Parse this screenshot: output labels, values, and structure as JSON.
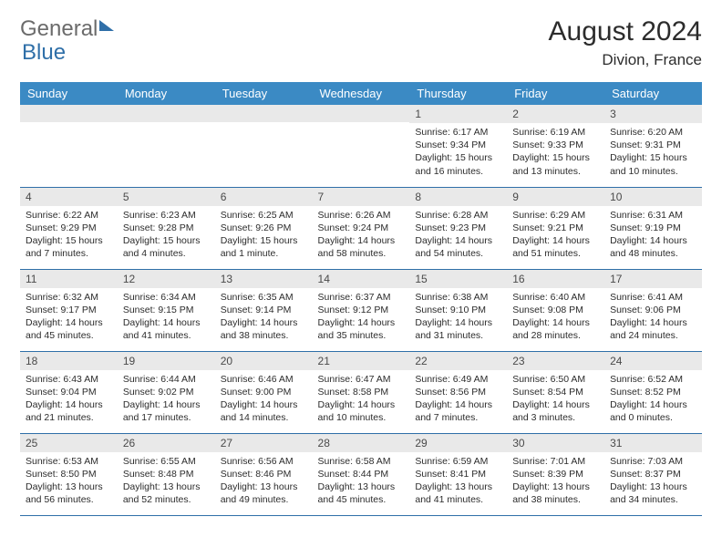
{
  "brand": {
    "part1": "General",
    "part2": "Blue"
  },
  "title": "August 2024",
  "location": "Divion, France",
  "colors": {
    "header_bg": "#3b8ac4",
    "header_text": "#ffffff",
    "daynum_bg": "#e9e9e9",
    "border": "#2f6fa8",
    "text": "#2c2c2c",
    "logo_gray": "#6b6b6b",
    "logo_blue": "#2f6fa8"
  },
  "font": {
    "family": "Arial",
    "title_size_pt": 30,
    "header_size_pt": 13,
    "cell_size_pt": 10.5
  },
  "daysOfWeek": [
    "Sunday",
    "Monday",
    "Tuesday",
    "Wednesday",
    "Thursday",
    "Friday",
    "Saturday"
  ],
  "weeks": [
    [
      null,
      null,
      null,
      null,
      {
        "n": "1",
        "sr": "6:17 AM",
        "ss": "9:34 PM",
        "dl": "15 hours and 16 minutes."
      },
      {
        "n": "2",
        "sr": "6:19 AM",
        "ss": "9:33 PM",
        "dl": "15 hours and 13 minutes."
      },
      {
        "n": "3",
        "sr": "6:20 AM",
        "ss": "9:31 PM",
        "dl": "15 hours and 10 minutes."
      }
    ],
    [
      {
        "n": "4",
        "sr": "6:22 AM",
        "ss": "9:29 PM",
        "dl": "15 hours and 7 minutes."
      },
      {
        "n": "5",
        "sr": "6:23 AM",
        "ss": "9:28 PM",
        "dl": "15 hours and 4 minutes."
      },
      {
        "n": "6",
        "sr": "6:25 AM",
        "ss": "9:26 PM",
        "dl": "15 hours and 1 minute."
      },
      {
        "n": "7",
        "sr": "6:26 AM",
        "ss": "9:24 PM",
        "dl": "14 hours and 58 minutes."
      },
      {
        "n": "8",
        "sr": "6:28 AM",
        "ss": "9:23 PM",
        "dl": "14 hours and 54 minutes."
      },
      {
        "n": "9",
        "sr": "6:29 AM",
        "ss": "9:21 PM",
        "dl": "14 hours and 51 minutes."
      },
      {
        "n": "10",
        "sr": "6:31 AM",
        "ss": "9:19 PM",
        "dl": "14 hours and 48 minutes."
      }
    ],
    [
      {
        "n": "11",
        "sr": "6:32 AM",
        "ss": "9:17 PM",
        "dl": "14 hours and 45 minutes."
      },
      {
        "n": "12",
        "sr": "6:34 AM",
        "ss": "9:15 PM",
        "dl": "14 hours and 41 minutes."
      },
      {
        "n": "13",
        "sr": "6:35 AM",
        "ss": "9:14 PM",
        "dl": "14 hours and 38 minutes."
      },
      {
        "n": "14",
        "sr": "6:37 AM",
        "ss": "9:12 PM",
        "dl": "14 hours and 35 minutes."
      },
      {
        "n": "15",
        "sr": "6:38 AM",
        "ss": "9:10 PM",
        "dl": "14 hours and 31 minutes."
      },
      {
        "n": "16",
        "sr": "6:40 AM",
        "ss": "9:08 PM",
        "dl": "14 hours and 28 minutes."
      },
      {
        "n": "17",
        "sr": "6:41 AM",
        "ss": "9:06 PM",
        "dl": "14 hours and 24 minutes."
      }
    ],
    [
      {
        "n": "18",
        "sr": "6:43 AM",
        "ss": "9:04 PM",
        "dl": "14 hours and 21 minutes."
      },
      {
        "n": "19",
        "sr": "6:44 AM",
        "ss": "9:02 PM",
        "dl": "14 hours and 17 minutes."
      },
      {
        "n": "20",
        "sr": "6:46 AM",
        "ss": "9:00 PM",
        "dl": "14 hours and 14 minutes."
      },
      {
        "n": "21",
        "sr": "6:47 AM",
        "ss": "8:58 PM",
        "dl": "14 hours and 10 minutes."
      },
      {
        "n": "22",
        "sr": "6:49 AM",
        "ss": "8:56 PM",
        "dl": "14 hours and 7 minutes."
      },
      {
        "n": "23",
        "sr": "6:50 AM",
        "ss": "8:54 PM",
        "dl": "14 hours and 3 minutes."
      },
      {
        "n": "24",
        "sr": "6:52 AM",
        "ss": "8:52 PM",
        "dl": "14 hours and 0 minutes."
      }
    ],
    [
      {
        "n": "25",
        "sr": "6:53 AM",
        "ss": "8:50 PM",
        "dl": "13 hours and 56 minutes."
      },
      {
        "n": "26",
        "sr": "6:55 AM",
        "ss": "8:48 PM",
        "dl": "13 hours and 52 minutes."
      },
      {
        "n": "27",
        "sr": "6:56 AM",
        "ss": "8:46 PM",
        "dl": "13 hours and 49 minutes."
      },
      {
        "n": "28",
        "sr": "6:58 AM",
        "ss": "8:44 PM",
        "dl": "13 hours and 45 minutes."
      },
      {
        "n": "29",
        "sr": "6:59 AM",
        "ss": "8:41 PM",
        "dl": "13 hours and 41 minutes."
      },
      {
        "n": "30",
        "sr": "7:01 AM",
        "ss": "8:39 PM",
        "dl": "13 hours and 38 minutes."
      },
      {
        "n": "31",
        "sr": "7:03 AM",
        "ss": "8:37 PM",
        "dl": "13 hours and 34 minutes."
      }
    ]
  ],
  "labels": {
    "sunrise": "Sunrise:",
    "sunset": "Sunset:",
    "daylight": "Daylight:"
  }
}
